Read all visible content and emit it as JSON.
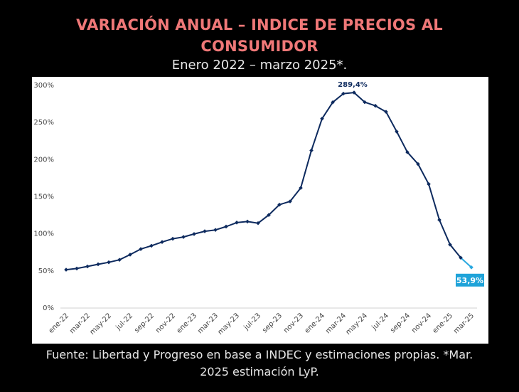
{
  "header": {
    "title_line1": "VARIACIÓN ANUAL – INDICE DE PRECIOS AL",
    "title_line2": "CONSUMIDOR",
    "subtitle": "Enero 2022 – marzo 2025*."
  },
  "footer": {
    "source_line1": "Fuente: Libertad y Progreso en base a INDEC y estimaciones propias. *Mar.",
    "source_line2": "2025 estimación LyP."
  },
  "colors": {
    "title": "#f07878",
    "line": "#0d2a5e",
    "estimate": "#29a8e0",
    "label_box": "#1fa3d9"
  },
  "chart_data": {
    "type": "line",
    "title": "VARIACIÓN ANUAL – INDICE DE PRECIOS AL CONSUMIDOR",
    "subtitle": "Enero 2022 – marzo 2025*.",
    "xlabel": "",
    "ylabel": "",
    "ylim": [
      0,
      300
    ],
    "y_ticks": [
      "0%",
      "50%",
      "100%",
      "150%",
      "200%",
      "250%",
      "300%"
    ],
    "grid": false,
    "x_tick_labels": [
      "ene-22",
      "mar-22",
      "may-22",
      "jul-22",
      "sep-22",
      "nov-22",
      "ene-23",
      "mar-23",
      "may-23",
      "jul-23",
      "sep-23",
      "nov-23",
      "ene-24",
      "mar-24",
      "may-24",
      "jul-24",
      "sep-24",
      "nov-24",
      "ene-25",
      "mar-25"
    ],
    "x": [
      "ene-22",
      "feb-22",
      "mar-22",
      "abr-22",
      "may-22",
      "jun-22",
      "jul-22",
      "ago-22",
      "sep-22",
      "oct-22",
      "nov-22",
      "dic-22",
      "ene-23",
      "feb-23",
      "mar-23",
      "abr-23",
      "may-23",
      "jun-23",
      "jul-23",
      "ago-23",
      "sep-23",
      "oct-23",
      "nov-23",
      "dic-23",
      "ene-24",
      "feb-24",
      "mar-24",
      "abr-24",
      "may-24",
      "jun-24",
      "jul-24",
      "ago-24",
      "sep-24",
      "oct-24",
      "nov-24",
      "dic-24",
      "ene-25",
      "feb-25",
      "mar-25"
    ],
    "series": [
      {
        "values": [
          50.7,
          52.3,
          55.1,
          58.0,
          60.7,
          64.0,
          71.0,
          78.5,
          83.0,
          88.0,
          92.4,
          94.8,
          98.8,
          102.5,
          104.3,
          108.8,
          114.2,
          115.6,
          113.4,
          124.4,
          138.3,
          142.7,
          160.9,
          211.4,
          254.2,
          276.2,
          287.9,
          289.4,
          276.4,
          271.5,
          263.4,
          236.7,
          209.0,
          193.0,
          166.0,
          117.8,
          84.5,
          66.9,
          53.9
        ]
      }
    ],
    "annotations": [
      {
        "text": "289,4%",
        "x": "abr-24",
        "y": 289.4
      },
      {
        "text": "53,9%",
        "x": "mar-25",
        "y": 53.9
      }
    ]
  }
}
